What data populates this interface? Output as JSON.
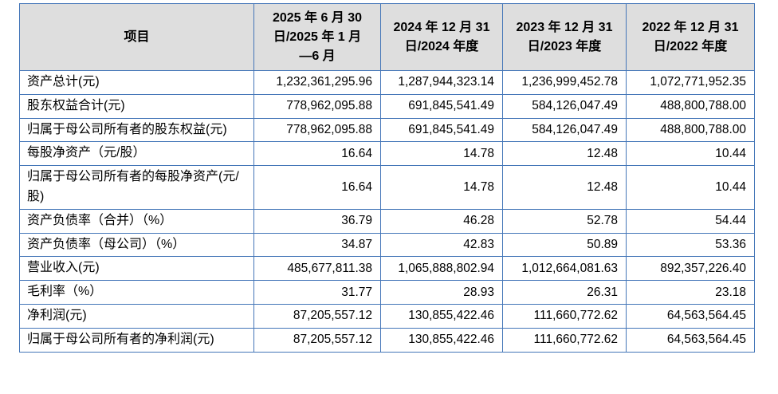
{
  "colors": {
    "border_blue": "#4476b8",
    "header_bg": "#dedede",
    "text": "#000000"
  },
  "table": {
    "header": {
      "item_col": "项目",
      "period_cols": [
        "2025 年 6 月 30\n日/2025 年 1 月\n—6 月",
        "2024 年 12 月 31\n日/2024 年度",
        "2023 年 12 月 31\n日/2023 年度",
        "2022 年 12 月 31\n日/2022 年度"
      ]
    },
    "rows": [
      {
        "label": "资产总计(元)",
        "values": [
          "1,232,361,295.96",
          "1,287,944,323.14",
          "1,236,999,452.78",
          "1,072,771,952.35"
        ]
      },
      {
        "label": "股东权益合计(元)",
        "values": [
          "778,962,095.88",
          "691,845,541.49",
          "584,126,047.49",
          "488,800,788.00"
        ]
      },
      {
        "label": "归属于母公司所有者的股东权益(元)",
        "values": [
          "778,962,095.88",
          "691,845,541.49",
          "584,126,047.49",
          "488,800,788.00"
        ]
      },
      {
        "label": "每股净资产（元/股）",
        "values": [
          "16.64",
          "14.78",
          "12.48",
          "10.44"
        ]
      },
      {
        "label": "归属于母公司所有者的每股净资产(元/股)",
        "values": [
          "16.64",
          "14.78",
          "12.48",
          "10.44"
        ]
      },
      {
        "label": "资产负债率（合并）（%）",
        "values": [
          "36.79",
          "46.28",
          "52.78",
          "54.44"
        ]
      },
      {
        "label": "资产负债率（母公司）（%）",
        "values": [
          "34.87",
          "42.83",
          "50.89",
          "53.36"
        ]
      },
      {
        "label": "营业收入(元)",
        "values": [
          "485,677,811.38",
          "1,065,888,802.94",
          "1,012,664,081.63",
          "892,357,226.40"
        ]
      },
      {
        "label": "毛利率（%）",
        "values": [
          "31.77",
          "28.93",
          "26.31",
          "23.18"
        ]
      },
      {
        "label": "净利润(元)",
        "values": [
          "87,205,557.12",
          "130,855,422.46",
          "111,660,772.62",
          "64,563,564.45"
        ]
      },
      {
        "label": "归属于母公司所有者的净利润(元)",
        "values": [
          "87,205,557.12",
          "130,855,422.46",
          "111,660,772.62",
          "64,563,564.45"
        ]
      }
    ]
  }
}
